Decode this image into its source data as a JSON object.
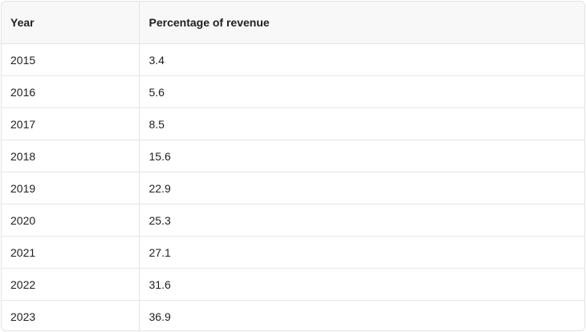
{
  "chart_data": {
    "type": "table",
    "columns": [
      "Year",
      "Percentage of revenue"
    ],
    "rows": [
      [
        "2015",
        "3.4"
      ],
      [
        "2016",
        "5.6"
      ],
      [
        "2017",
        "8.5"
      ],
      [
        "2018",
        "15.6"
      ],
      [
        "2019",
        "22.9"
      ],
      [
        "2020",
        "25.3"
      ],
      [
        "2021",
        "27.1"
      ],
      [
        "2022",
        "31.6"
      ],
      [
        "2023",
        "36.9"
      ]
    ]
  }
}
